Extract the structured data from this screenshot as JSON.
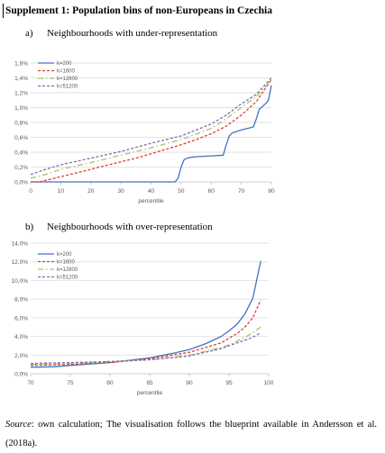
{
  "title": "Supplement 1: Population bins of non-Europeans in Czechia",
  "panel_a": {
    "label": "a)",
    "heading": "Neighbourhoods with under-representation"
  },
  "panel_b": {
    "label": "b)",
    "heading": "Neighbourhoods with over-representation"
  },
  "footer": {
    "source_label": "Source",
    "text": ": own calculation; The visualisation follows the blueprint available in Andersson et al. (2018a)."
  },
  "colors": {
    "k200": "#4472c4",
    "k1600": "#e03c31",
    "k12800": "#a9c16a",
    "k51200": "#7b6db8",
    "grid": "#d9d9d9",
    "axis": "#bfbfbf",
    "tick_text": "#595959"
  },
  "chart_data": [
    {
      "type": "line",
      "title": "",
      "xlabel": "percentile",
      "ylabel": "",
      "xlim": [
        0,
        80
      ],
      "ylim": [
        0,
        1.6
      ],
      "x_ticks": [
        "0",
        "10",
        "20",
        "30",
        "40",
        "50",
        "60",
        "70",
        "80"
      ],
      "y_ticks": [
        "0,0%",
        "0,2%",
        "0,4%",
        "0,6%",
        "0,8%",
        "1,0%",
        "1,2%",
        "1,4%",
        "1,6%"
      ],
      "grid": true,
      "legend_position": "top-left",
      "series": [
        {
          "name": "k=200",
          "style": "solid",
          "x": [
            0,
            10,
            20,
            30,
            40,
            48,
            49,
            50,
            51,
            52,
            53,
            55,
            60,
            64,
            65,
            66,
            67,
            70,
            74,
            75,
            76,
            78,
            79,
            80
          ],
          "y": [
            0,
            0,
            0,
            0,
            0,
            0,
            0.05,
            0.2,
            0.3,
            0.32,
            0.33,
            0.34,
            0.35,
            0.36,
            0.5,
            0.62,
            0.66,
            0.7,
            0.74,
            0.85,
            0.98,
            1.05,
            1.1,
            1.3
          ]
        },
        {
          "name": "k=1600",
          "style": "dash",
          "x": [
            0,
            3,
            5,
            10,
            15,
            20,
            25,
            30,
            35,
            40,
            45,
            50,
            55,
            60,
            65,
            70,
            75,
            80
          ],
          "y": [
            0,
            0,
            0.02,
            0.07,
            0.12,
            0.17,
            0.22,
            0.27,
            0.32,
            0.38,
            0.44,
            0.5,
            0.57,
            0.65,
            0.75,
            0.9,
            1.08,
            1.38
          ]
        },
        {
          "name": "k=12800",
          "style": "dashdot",
          "x": [
            0,
            5,
            10,
            20,
            30,
            40,
            50,
            60,
            65,
            70,
            75,
            80
          ],
          "y": [
            0.05,
            0.1,
            0.17,
            0.26,
            0.36,
            0.46,
            0.57,
            0.72,
            0.85,
            1.0,
            1.15,
            1.37
          ]
        },
        {
          "name": "k=51200",
          "style": "dash",
          "x": [
            0,
            5,
            10,
            20,
            30,
            40,
            50,
            60,
            65,
            70,
            75,
            80
          ],
          "y": [
            0.1,
            0.17,
            0.23,
            0.32,
            0.41,
            0.52,
            0.62,
            0.78,
            0.9,
            1.05,
            1.18,
            1.4
          ]
        }
      ]
    },
    {
      "type": "line",
      "title": "",
      "xlabel": "percentile",
      "ylabel": "",
      "xlim": [
        70,
        100
      ],
      "ylim": [
        0,
        14
      ],
      "x_ticks": [
        "70",
        "75",
        "80",
        "85",
        "90",
        "95",
        "100"
      ],
      "y_ticks": [
        "0,0%",
        "2,0%",
        "4,0%",
        "6,0%",
        "8,0%",
        "10,0%",
        "12,0%",
        "14,0%"
      ],
      "grid": true,
      "legend_position": "top-left",
      "series": [
        {
          "name": "k=200",
          "style": "solid",
          "x": [
            70,
            73,
            75,
            80,
            85,
            88,
            90,
            92,
            94,
            95,
            96,
            97,
            98,
            99
          ],
          "y": [
            0.7,
            0.75,
            0.9,
            1.2,
            1.7,
            2.2,
            2.6,
            3.2,
            4.0,
            4.6,
            5.3,
            6.4,
            8.1,
            12.1
          ]
        },
        {
          "name": "k=1600",
          "style": "dash",
          "x": [
            70,
            75,
            80,
            85,
            90,
            92,
            94,
            95,
            96,
            97,
            98,
            99
          ],
          "y": [
            0.9,
            1.0,
            1.2,
            1.6,
            2.3,
            2.8,
            3.3,
            3.8,
            4.3,
            5.0,
            6.0,
            7.9
          ]
        },
        {
          "name": "k=12800",
          "style": "dashdot",
          "x": [
            70,
            75,
            80,
            85,
            90,
            92,
            94,
            95,
            96,
            97,
            98,
            99
          ],
          "y": [
            1.0,
            1.1,
            1.3,
            1.5,
            2.0,
            2.4,
            2.8,
            3.1,
            3.5,
            3.9,
            4.4,
            5.0
          ]
        },
        {
          "name": "k=51200",
          "style": "dash",
          "x": [
            70,
            75,
            80,
            85,
            90,
            92,
            94,
            95,
            96,
            97,
            98,
            99
          ],
          "y": [
            1.1,
            1.2,
            1.3,
            1.5,
            1.9,
            2.3,
            2.7,
            3.0,
            3.3,
            3.6,
            3.9,
            4.4
          ]
        }
      ]
    }
  ]
}
